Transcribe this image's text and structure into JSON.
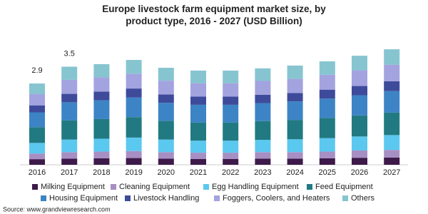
{
  "chart_data": {
    "type": "stacked_bar",
    "title": "Europe livestock farm equipment market size, by product type, 2016 - 2027 (USD Billion)",
    "categories": [
      "2016",
      "2017",
      "2018",
      "2019",
      "2020",
      "2021",
      "2022",
      "2023",
      "2024",
      "2025",
      "2026",
      "2027"
    ],
    "series": [
      {
        "name": "Milking Equipment",
        "color": "#3d1a4a",
        "values": [
          0.2,
          0.22,
          0.23,
          0.24,
          0.22,
          0.21,
          0.21,
          0.22,
          0.22,
          0.23,
          0.25,
          0.26
        ]
      },
      {
        "name": "Cleaning Equipment",
        "color": "#a78fc4",
        "values": [
          0.2,
          0.23,
          0.24,
          0.25,
          0.23,
          0.22,
          0.22,
          0.23,
          0.23,
          0.24,
          0.26,
          0.27
        ]
      },
      {
        "name": "Egg Handling Equipment",
        "color": "#5bc8f0",
        "values": [
          0.38,
          0.45,
          0.46,
          0.48,
          0.45,
          0.43,
          0.43,
          0.44,
          0.46,
          0.48,
          0.5,
          0.53
        ]
      },
      {
        "name": "Feed Equipment",
        "color": "#217a82",
        "values": [
          0.56,
          0.68,
          0.7,
          0.73,
          0.67,
          0.65,
          0.65,
          0.67,
          0.69,
          0.72,
          0.75,
          0.8
        ]
      },
      {
        "name": "Housing Equipment",
        "color": "#3d84c6",
        "values": [
          0.53,
          0.65,
          0.67,
          0.7,
          0.64,
          0.63,
          0.63,
          0.64,
          0.66,
          0.69,
          0.72,
          0.77
        ]
      },
      {
        "name": "Livestock Handling",
        "color": "#3e4b9b",
        "values": [
          0.25,
          0.3,
          0.31,
          0.32,
          0.3,
          0.29,
          0.29,
          0.3,
          0.3,
          0.32,
          0.33,
          0.35
        ]
      },
      {
        "name": "Foggers, Coolers, and Heaters",
        "color": "#a3a3e0",
        "values": [
          0.4,
          0.5,
          0.51,
          0.53,
          0.49,
          0.48,
          0.48,
          0.49,
          0.51,
          0.53,
          0.56,
          0.59
        ]
      },
      {
        "name": "Others",
        "color": "#86c5d0",
        "values": [
          0.38,
          0.47,
          0.47,
          0.49,
          0.46,
          0.45,
          0.45,
          0.45,
          0.47,
          0.48,
          0.52,
          0.55
        ]
      }
    ],
    "total_labels": [
      2.9,
      3.5
    ],
    "source": "Source: www.grandviewresearch.com"
  }
}
